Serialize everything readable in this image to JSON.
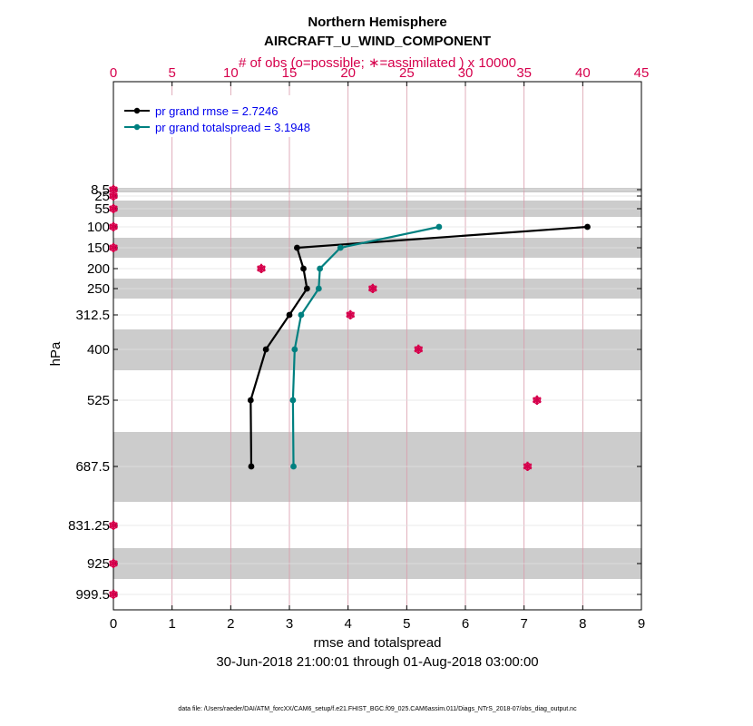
{
  "chart_data": {
    "type": "line",
    "title": "Northern Hemisphere",
    "subtitle": "AIRCRAFT_U_WIND_COMPONENT",
    "top_axis_label": "# of obs (o=possible; ∗=assimilated ) x 10000",
    "xlabel": "rmse and totalspread",
    "ylabel": "hPa",
    "date_range": "30-Jun-2018 21:00:01 through 01-Aug-2018 03:00:00",
    "footer": "data file: /Users/raeder/DAI/ATM_forcXX/CAM6_setup/f.e21.FHIST_BGC.f09_025.CAM6assim.011/Diags_NTrS_2018-07/obs_diag_output.nc",
    "xlim": [
      0,
      9
    ],
    "x_ticks": [
      "0",
      "1",
      "2",
      "3",
      "4",
      "5",
      "6",
      "7",
      "8",
      "9"
    ],
    "top_xlim": [
      0,
      45
    ],
    "top_ticks": [
      "0",
      "5",
      "10",
      "15",
      "20",
      "25",
      "30",
      "35",
      "40",
      "45"
    ],
    "levels": [
      8.5,
      25,
      55,
      100,
      150,
      200,
      250,
      312.5,
      400,
      525,
      687.5,
      831.25,
      925,
      999.5
    ],
    "level_labels": [
      "8.5",
      "25",
      "55",
      "100",
      "150",
      "200",
      "250",
      "312.5",
      "400",
      "525",
      "687.5",
      "831.25",
      "925",
      "999.5"
    ],
    "series": [
      {
        "name": "rmse",
        "legend": "pr grand rmse = 2.7246",
        "color": "#000000",
        "levels": [
          100,
          150,
          200,
          250,
          312.5,
          400,
          525,
          687.5
        ],
        "values": [
          8.08,
          3.13,
          3.24,
          3.3,
          3.0,
          2.6,
          2.34,
          2.35
        ]
      },
      {
        "name": "totalspread",
        "legend": "pr grand totalspread = 3.1948",
        "color": "#008080",
        "levels": [
          100,
          150,
          200,
          250,
          312.5,
          400,
          525,
          687.5
        ],
        "values": [
          5.55,
          3.87,
          3.52,
          3.5,
          3.2,
          3.09,
          3.06,
          3.07
        ]
      }
    ],
    "obs_counts": {
      "color": "#d6004c",
      "levels": [
        8.5,
        25,
        55,
        100,
        150,
        200,
        250,
        312.5,
        400,
        525,
        687.5,
        831.25,
        925,
        999.5
      ],
      "possible": [
        0,
        0,
        0,
        0,
        0,
        12.6,
        22.1,
        20.2,
        26.0,
        36.1,
        35.3,
        0,
        0,
        0
      ],
      "assimilated": [
        0,
        0,
        0,
        0,
        0,
        12.6,
        22.1,
        20.2,
        26.0,
        36.1,
        35.3,
        0,
        0,
        0
      ]
    }
  }
}
